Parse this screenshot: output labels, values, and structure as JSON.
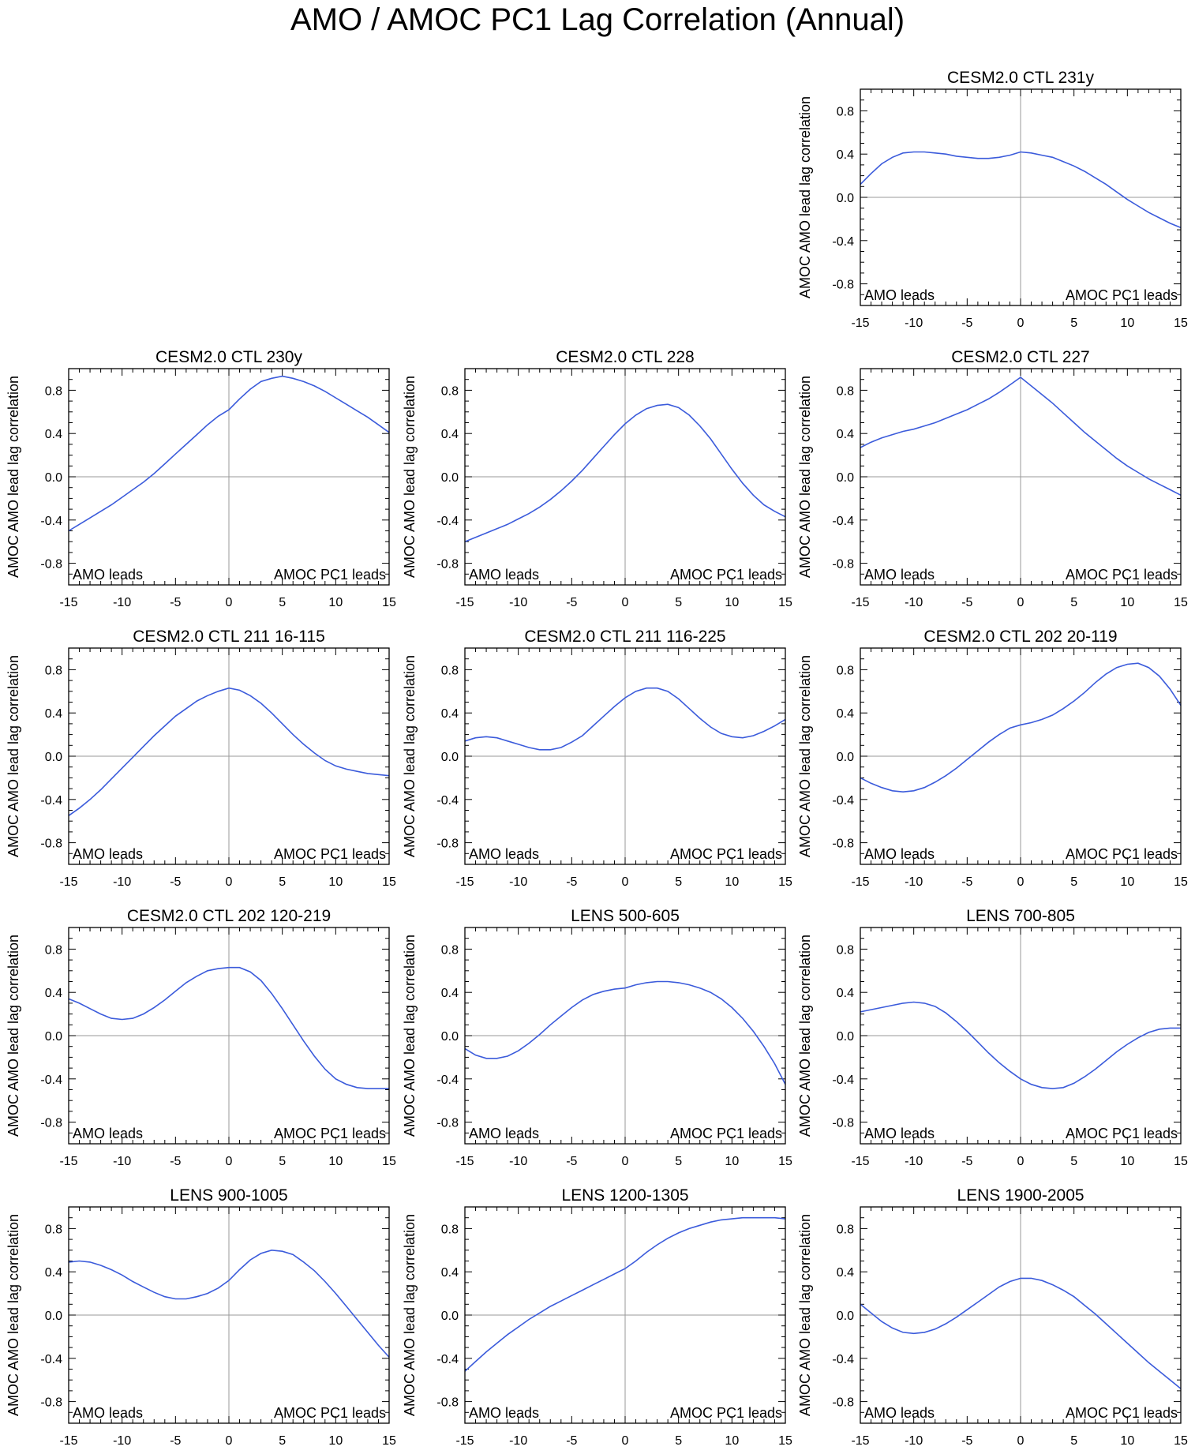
{
  "title": "AMO / AMOC PC1 Lag Correlation (Annual)",
  "colors": {
    "line": "#3b5bdb",
    "frame": "#000000",
    "zero_line": "#9a9a9a"
  },
  "chart_data": [
    {
      "type": "line",
      "title": "CESM2.0 CTL 231y",
      "xlabel": "",
      "ylabel": "AMOC AMO lead lag correlation",
      "xlim": [
        -15,
        15
      ],
      "ylim": [
        -1,
        1
      ],
      "xticks": [
        -15,
        -10,
        -5,
        0,
        5,
        10,
        15
      ],
      "yticks": [
        -0.8,
        -0.4,
        0.0,
        0.4,
        0.8
      ],
      "ytick_labels": [
        "-0.8",
        "-0.4",
        "0.0",
        "0.4",
        "0.8"
      ],
      "left_annotation": "AMO leads",
      "right_annotation": "AMOC PC1 leads",
      "x": [
        -15,
        -14,
        -13,
        -12,
        -11,
        -10,
        -9,
        -8,
        -7,
        -6,
        -5,
        -4,
        -3,
        -2,
        -1,
        0,
        1,
        2,
        3,
        4,
        5,
        6,
        7,
        8,
        9,
        10,
        11,
        12,
        13,
        14,
        15
      ],
      "values": [
        0.12,
        0.22,
        0.31,
        0.37,
        0.41,
        0.42,
        0.42,
        0.41,
        0.4,
        0.38,
        0.37,
        0.36,
        0.36,
        0.37,
        0.39,
        0.42,
        0.41,
        0.39,
        0.37,
        0.33,
        0.29,
        0.24,
        0.18,
        0.12,
        0.05,
        -0.02,
        -0.08,
        -0.14,
        -0.19,
        -0.24,
        -0.28
      ]
    },
    {
      "type": "line",
      "title": "CESM2.0 CTL 230y",
      "xlabel": "",
      "ylabel": "AMOC AMO lead lag correlation",
      "xlim": [
        -15,
        15
      ],
      "ylim": [
        -1,
        1
      ],
      "xticks": [
        -15,
        -10,
        -5,
        0,
        5,
        10,
        15
      ],
      "yticks": [
        -0.8,
        -0.4,
        0.0,
        0.4,
        0.8
      ],
      "ytick_labels": [
        "-0.8",
        "-0.4",
        "0.0",
        "0.4",
        "0.8"
      ],
      "left_annotation": "AMO leads",
      "right_annotation": "AMOC PC1 leads",
      "x": [
        -15,
        -14,
        -13,
        -12,
        -11,
        -10,
        -9,
        -8,
        -7,
        -6,
        -5,
        -4,
        -3,
        -2,
        -1,
        0,
        1,
        2,
        3,
        4,
        5,
        6,
        7,
        8,
        9,
        10,
        11,
        12,
        13,
        14,
        15
      ],
      "values": [
        -0.5,
        -0.44,
        -0.38,
        -0.32,
        -0.26,
        -0.19,
        -0.12,
        -0.05,
        0.03,
        0.12,
        0.21,
        0.3,
        0.39,
        0.48,
        0.56,
        0.62,
        0.72,
        0.81,
        0.88,
        0.91,
        0.93,
        0.91,
        0.88,
        0.84,
        0.79,
        0.73,
        0.67,
        0.61,
        0.55,
        0.48,
        0.41
      ]
    },
    {
      "type": "line",
      "title": "CESM2.0 CTL 228",
      "xlabel": "",
      "ylabel": "AMOC AMO lead lag correlation",
      "xlim": [
        -15,
        15
      ],
      "ylim": [
        -1,
        1
      ],
      "xticks": [
        -15,
        -10,
        -5,
        0,
        5,
        10,
        15
      ],
      "yticks": [
        -0.8,
        -0.4,
        0.0,
        0.4,
        0.8
      ],
      "ytick_labels": [
        "-0.8",
        "-0.4",
        "0.0",
        "0.4",
        "0.8"
      ],
      "left_annotation": "AMO leads",
      "right_annotation": "AMOC PC1 leads",
      "x": [
        -15,
        -14,
        -13,
        -12,
        -11,
        -10,
        -9,
        -8,
        -7,
        -6,
        -5,
        -4,
        -3,
        -2,
        -1,
        0,
        1,
        2,
        3,
        4,
        5,
        6,
        7,
        8,
        9,
        10,
        11,
        12,
        13,
        14,
        15
      ],
      "values": [
        -0.6,
        -0.56,
        -0.52,
        -0.48,
        -0.44,
        -0.39,
        -0.34,
        -0.28,
        -0.21,
        -0.13,
        -0.04,
        0.06,
        0.17,
        0.28,
        0.39,
        0.49,
        0.57,
        0.63,
        0.66,
        0.67,
        0.64,
        0.57,
        0.47,
        0.35,
        0.21,
        0.07,
        -0.06,
        -0.17,
        -0.26,
        -0.32,
        -0.37
      ]
    },
    {
      "type": "line",
      "title": "CESM2.0 CTL 227",
      "xlabel": "",
      "ylabel": "AMOC AMO lead lag correlation",
      "xlim": [
        -15,
        15
      ],
      "ylim": [
        -1,
        1
      ],
      "xticks": [
        -15,
        -10,
        -5,
        0,
        5,
        10,
        15
      ],
      "yticks": [
        -0.8,
        -0.4,
        0.0,
        0.4,
        0.8
      ],
      "ytick_labels": [
        "-0.8",
        "-0.4",
        "0.0",
        "0.4",
        "0.8"
      ],
      "left_annotation": "AMO leads",
      "right_annotation": "AMOC PC1 leads",
      "x": [
        -15,
        -14,
        -13,
        -12,
        -11,
        -10,
        -9,
        -8,
        -7,
        -6,
        -5,
        -4,
        -3,
        -2,
        -1,
        0,
        1,
        2,
        3,
        4,
        5,
        6,
        7,
        8,
        9,
        10,
        11,
        12,
        13,
        14,
        15
      ],
      "values": [
        0.27,
        0.32,
        0.36,
        0.39,
        0.42,
        0.44,
        0.47,
        0.5,
        0.54,
        0.58,
        0.62,
        0.67,
        0.72,
        0.78,
        0.85,
        0.92,
        0.84,
        0.76,
        0.68,
        0.59,
        0.5,
        0.41,
        0.33,
        0.25,
        0.17,
        0.1,
        0.04,
        -0.02,
        -0.07,
        -0.12,
        -0.17
      ]
    },
    {
      "type": "line",
      "title": "CESM2.0 CTL 211 16-115",
      "xlabel": "",
      "ylabel": "AMOC AMO lead lag correlation",
      "xlim": [
        -15,
        15
      ],
      "ylim": [
        -1,
        1
      ],
      "xticks": [
        -15,
        -10,
        -5,
        0,
        5,
        10,
        15
      ],
      "yticks": [
        -0.8,
        -0.4,
        0.0,
        0.4,
        0.8
      ],
      "ytick_labels": [
        "-0.8",
        "-0.4",
        "0.0",
        "0.4",
        "0.8"
      ],
      "left_annotation": "AMO leads",
      "right_annotation": "AMOC PC1 leads",
      "x": [
        -15,
        -14,
        -13,
        -12,
        -11,
        -10,
        -9,
        -8,
        -7,
        -6,
        -5,
        -4,
        -3,
        -2,
        -1,
        0,
        1,
        2,
        3,
        4,
        5,
        6,
        7,
        8,
        9,
        10,
        11,
        12,
        13,
        14,
        15
      ],
      "values": [
        -0.55,
        -0.48,
        -0.4,
        -0.31,
        -0.21,
        -0.11,
        -0.01,
        0.09,
        0.19,
        0.28,
        0.37,
        0.44,
        0.51,
        0.56,
        0.6,
        0.63,
        0.61,
        0.56,
        0.49,
        0.4,
        0.3,
        0.2,
        0.11,
        0.03,
        -0.04,
        -0.09,
        -0.12,
        -0.14,
        -0.16,
        -0.17,
        -0.18
      ]
    },
    {
      "type": "line",
      "title": "CESM2.0 CTL 211 116-225",
      "xlabel": "",
      "ylabel": "AMOC AMO lead lag correlation",
      "xlim": [
        -15,
        15
      ],
      "ylim": [
        -1,
        1
      ],
      "xticks": [
        -15,
        -10,
        -5,
        0,
        5,
        10,
        15
      ],
      "yticks": [
        -0.8,
        -0.4,
        0.0,
        0.4,
        0.8
      ],
      "ytick_labels": [
        "-0.8",
        "-0.4",
        "0.0",
        "0.4",
        "0.8"
      ],
      "left_annotation": "AMO leads",
      "right_annotation": "AMOC PC1 leads",
      "x": [
        -15,
        -14,
        -13,
        -12,
        -11,
        -10,
        -9,
        -8,
        -7,
        -6,
        -5,
        -4,
        -3,
        -2,
        -1,
        0,
        1,
        2,
        3,
        4,
        5,
        6,
        7,
        8,
        9,
        10,
        11,
        12,
        13,
        14,
        15
      ],
      "values": [
        0.14,
        0.17,
        0.18,
        0.17,
        0.14,
        0.11,
        0.08,
        0.06,
        0.06,
        0.08,
        0.13,
        0.19,
        0.28,
        0.37,
        0.46,
        0.54,
        0.6,
        0.63,
        0.63,
        0.6,
        0.53,
        0.44,
        0.35,
        0.27,
        0.21,
        0.18,
        0.17,
        0.19,
        0.23,
        0.28,
        0.34
      ]
    },
    {
      "type": "line",
      "title": "CESM2.0 CTL 202 20-119",
      "xlabel": "",
      "ylabel": "AMOC AMO lead lag correlation",
      "xlim": [
        -15,
        15
      ],
      "ylim": [
        -1,
        1
      ],
      "xticks": [
        -15,
        -10,
        -5,
        0,
        5,
        10,
        15
      ],
      "yticks": [
        -0.8,
        -0.4,
        0.0,
        0.4,
        0.8
      ],
      "ytick_labels": [
        "-0.8",
        "-0.4",
        "0.0",
        "0.4",
        "0.8"
      ],
      "left_annotation": "AMO leads",
      "right_annotation": "AMOC PC1 leads",
      "x": [
        -15,
        -14,
        -13,
        -12,
        -11,
        -10,
        -9,
        -8,
        -7,
        -6,
        -5,
        -4,
        -3,
        -2,
        -1,
        0,
        1,
        2,
        3,
        4,
        5,
        6,
        7,
        8,
        9,
        10,
        11,
        12,
        13,
        14,
        15
      ],
      "values": [
        -0.2,
        -0.25,
        -0.29,
        -0.32,
        -0.33,
        -0.32,
        -0.29,
        -0.24,
        -0.18,
        -0.11,
        -0.03,
        0.05,
        0.13,
        0.2,
        0.26,
        0.29,
        0.31,
        0.34,
        0.38,
        0.44,
        0.51,
        0.59,
        0.68,
        0.76,
        0.82,
        0.85,
        0.86,
        0.82,
        0.74,
        0.62,
        0.47
      ]
    },
    {
      "type": "line",
      "title": "CESM2.0 CTL 202 120-219",
      "xlabel": "",
      "ylabel": "AMOC AMO lead lag correlation",
      "xlim": [
        -15,
        15
      ],
      "ylim": [
        -1,
        1
      ],
      "xticks": [
        -15,
        -10,
        -5,
        0,
        5,
        10,
        15
      ],
      "yticks": [
        -0.8,
        -0.4,
        0.0,
        0.4,
        0.8
      ],
      "ytick_labels": [
        "-0.8",
        "-0.4",
        "0.0",
        "0.4",
        "0.8"
      ],
      "left_annotation": "AMO leads",
      "right_annotation": "AMOC PC1 leads",
      "x": [
        -15,
        -14,
        -13,
        -12,
        -11,
        -10,
        -9,
        -8,
        -7,
        -6,
        -5,
        -4,
        -3,
        -2,
        -1,
        0,
        1,
        2,
        3,
        4,
        5,
        6,
        7,
        8,
        9,
        10,
        11,
        12,
        13,
        14,
        15
      ],
      "values": [
        0.34,
        0.3,
        0.25,
        0.2,
        0.16,
        0.15,
        0.16,
        0.2,
        0.26,
        0.33,
        0.41,
        0.49,
        0.55,
        0.6,
        0.62,
        0.63,
        0.63,
        0.59,
        0.51,
        0.39,
        0.25,
        0.1,
        -0.05,
        -0.19,
        -0.31,
        -0.4,
        -0.45,
        -0.48,
        -0.49,
        -0.49,
        -0.49
      ]
    },
    {
      "type": "line",
      "title": "LENS 500-605",
      "xlabel": "",
      "ylabel": "AMOC AMO lead lag correlation",
      "xlim": [
        -15,
        15
      ],
      "ylim": [
        -1,
        1
      ],
      "xticks": [
        -15,
        -10,
        -5,
        0,
        5,
        10,
        15
      ],
      "yticks": [
        -0.8,
        -0.4,
        0.0,
        0.4,
        0.8
      ],
      "ytick_labels": [
        "-0.8",
        "-0.4",
        "0.0",
        "0.4",
        "0.8"
      ],
      "left_annotation": "AMO leads",
      "right_annotation": "AMOC PC1 leads",
      "x": [
        -15,
        -14,
        -13,
        -12,
        -11,
        -10,
        -9,
        -8,
        -7,
        -6,
        -5,
        -4,
        -3,
        -2,
        -1,
        0,
        1,
        2,
        3,
        4,
        5,
        6,
        7,
        8,
        9,
        10,
        11,
        12,
        13,
        14,
        15
      ],
      "values": [
        -0.12,
        -0.18,
        -0.21,
        -0.21,
        -0.19,
        -0.14,
        -0.07,
        0.01,
        0.1,
        0.18,
        0.26,
        0.33,
        0.38,
        0.41,
        0.43,
        0.44,
        0.47,
        0.49,
        0.5,
        0.5,
        0.49,
        0.47,
        0.44,
        0.4,
        0.34,
        0.26,
        0.16,
        0.04,
        -0.1,
        -0.26,
        -0.45
      ]
    },
    {
      "type": "line",
      "title": "LENS 700-805",
      "xlabel": "",
      "ylabel": "AMOC AMO lead lag correlation",
      "xlim": [
        -15,
        15
      ],
      "ylim": [
        -1,
        1
      ],
      "xticks": [
        -15,
        -10,
        -5,
        0,
        5,
        10,
        15
      ],
      "yticks": [
        -0.8,
        -0.4,
        0.0,
        0.4,
        0.8
      ],
      "ytick_labels": [
        "-0.8",
        "-0.4",
        "0.0",
        "0.4",
        "0.8"
      ],
      "left_annotation": "AMO leads",
      "right_annotation": "AMOC PC1 leads",
      "x": [
        -15,
        -14,
        -13,
        -12,
        -11,
        -10,
        -9,
        -8,
        -7,
        -6,
        -5,
        -4,
        -3,
        -2,
        -1,
        0,
        1,
        2,
        3,
        4,
        5,
        6,
        7,
        8,
        9,
        10,
        11,
        12,
        13,
        14,
        15
      ],
      "values": [
        0.22,
        0.24,
        0.26,
        0.28,
        0.3,
        0.31,
        0.3,
        0.27,
        0.21,
        0.13,
        0.04,
        -0.06,
        -0.16,
        -0.25,
        -0.33,
        -0.4,
        -0.45,
        -0.48,
        -0.49,
        -0.48,
        -0.44,
        -0.38,
        -0.31,
        -0.23,
        -0.15,
        -0.08,
        -0.02,
        0.03,
        0.06,
        0.07,
        0.07
      ]
    },
    {
      "type": "line",
      "title": "LENS 900-1005",
      "xlabel": "",
      "ylabel": "AMOC AMO lead lag correlation",
      "xlim": [
        -15,
        15
      ],
      "ylim": [
        -1,
        1
      ],
      "xticks": [
        -15,
        -10,
        -5,
        0,
        5,
        10,
        15
      ],
      "yticks": [
        -0.8,
        -0.4,
        0.0,
        0.4,
        0.8
      ],
      "ytick_labels": [
        "-0.8",
        "-0.4",
        "0.0",
        "0.4",
        "0.8"
      ],
      "left_annotation": "AMO leads",
      "right_annotation": "AMOC PC1 leads",
      "x": [
        -15,
        -14,
        -13,
        -12,
        -11,
        -10,
        -9,
        -8,
        -7,
        -6,
        -5,
        -4,
        -3,
        -2,
        -1,
        0,
        1,
        2,
        3,
        4,
        5,
        6,
        7,
        8,
        9,
        10,
        11,
        12,
        13,
        14,
        15
      ],
      "values": [
        0.49,
        0.5,
        0.49,
        0.46,
        0.42,
        0.37,
        0.31,
        0.26,
        0.21,
        0.17,
        0.15,
        0.15,
        0.17,
        0.2,
        0.25,
        0.32,
        0.42,
        0.51,
        0.57,
        0.6,
        0.59,
        0.56,
        0.49,
        0.41,
        0.31,
        0.2,
        0.08,
        -0.04,
        -0.16,
        -0.28,
        -0.39
      ]
    },
    {
      "type": "line",
      "title": "LENS 1200-1305",
      "xlabel": "",
      "ylabel": "AMOC AMO lead lag correlation",
      "xlim": [
        -15,
        15
      ],
      "ylim": [
        -1,
        1
      ],
      "xticks": [
        -15,
        -10,
        -5,
        0,
        5,
        10,
        15
      ],
      "yticks": [
        -0.8,
        -0.4,
        0.0,
        0.4,
        0.8
      ],
      "ytick_labels": [
        "-0.8",
        "-0.4",
        "0.0",
        "0.4",
        "0.8"
      ],
      "left_annotation": "AMO leads",
      "right_annotation": "AMOC PC1 leads",
      "x": [
        -15,
        -14,
        -13,
        -12,
        -11,
        -10,
        -9,
        -8,
        -7,
        -6,
        -5,
        -4,
        -3,
        -2,
        -1,
        0,
        1,
        2,
        3,
        4,
        5,
        6,
        7,
        8,
        9,
        10,
        11,
        12,
        13,
        14,
        15
      ],
      "values": [
        -0.52,
        -0.43,
        -0.34,
        -0.26,
        -0.18,
        -0.11,
        -0.04,
        0.02,
        0.08,
        0.13,
        0.18,
        0.23,
        0.28,
        0.33,
        0.38,
        0.43,
        0.5,
        0.58,
        0.65,
        0.71,
        0.76,
        0.8,
        0.83,
        0.86,
        0.88,
        0.89,
        0.9,
        0.9,
        0.9,
        0.9,
        0.89
      ]
    },
    {
      "type": "line",
      "title": "LENS 1900-2005",
      "xlabel": "",
      "ylabel": "AMOC AMO lead lag correlation",
      "xlim": [
        -15,
        15
      ],
      "ylim": [
        -1,
        1
      ],
      "xticks": [
        -15,
        -10,
        -5,
        0,
        5,
        10,
        15
      ],
      "yticks": [
        -0.8,
        -0.4,
        0.0,
        0.4,
        0.8
      ],
      "ytick_labels": [
        "-0.8",
        "-0.4",
        "0.0",
        "0.4",
        "0.8"
      ],
      "left_annotation": "AMO leads",
      "right_annotation": "AMOC PC1 leads",
      "x": [
        -15,
        -14,
        -13,
        -12,
        -11,
        -10,
        -9,
        -8,
        -7,
        -6,
        -5,
        -4,
        -3,
        -2,
        -1,
        0,
        1,
        2,
        3,
        4,
        5,
        6,
        7,
        8,
        9,
        10,
        11,
        12,
        13,
        14,
        15
      ],
      "values": [
        0.1,
        0.02,
        -0.06,
        -0.12,
        -0.16,
        -0.17,
        -0.16,
        -0.13,
        -0.08,
        -0.02,
        0.05,
        0.12,
        0.19,
        0.26,
        0.31,
        0.34,
        0.34,
        0.32,
        0.28,
        0.23,
        0.17,
        0.09,
        0.01,
        -0.08,
        -0.17,
        -0.26,
        -0.35,
        -0.44,
        -0.52,
        -0.6,
        -0.68
      ]
    }
  ]
}
